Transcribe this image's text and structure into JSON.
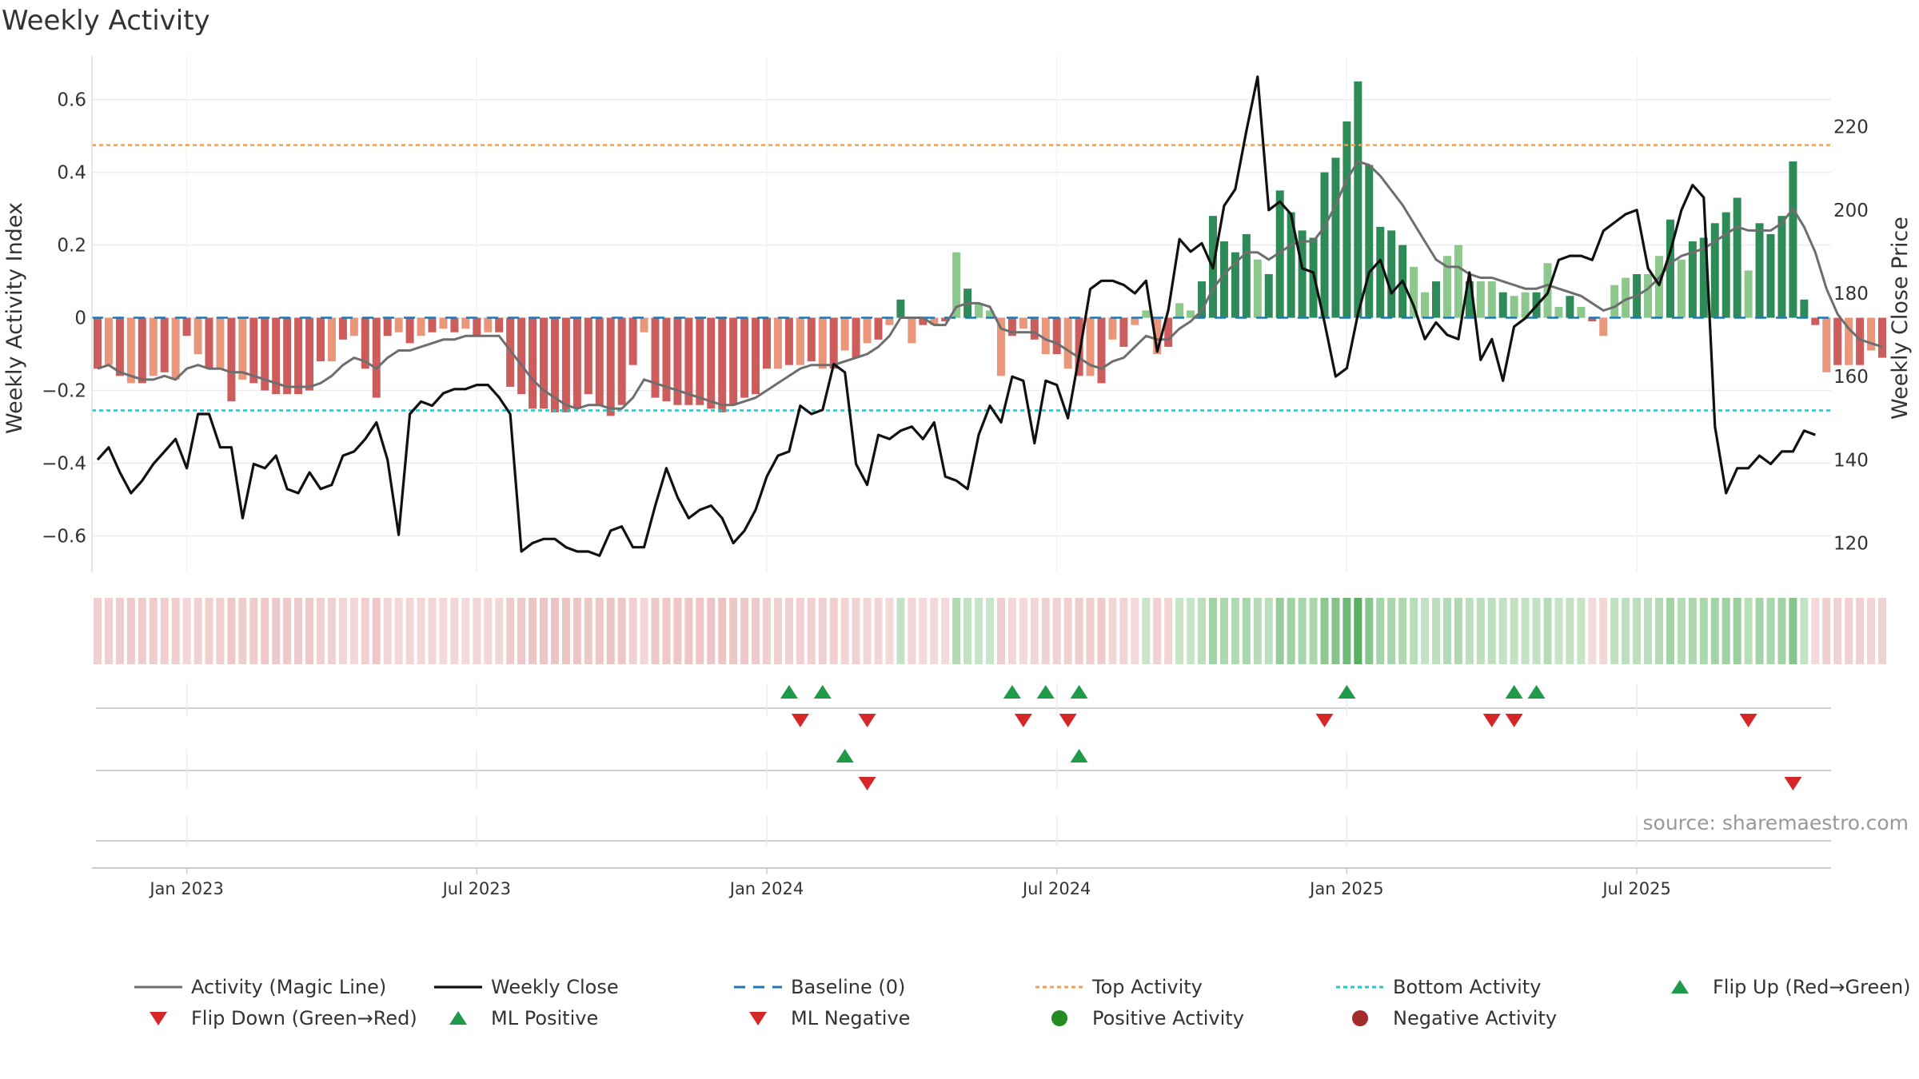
{
  "title": "Weekly Activity",
  "source": "source: sharemaestro.com",
  "colors": {
    "magic_line": "#6e6e6e",
    "close": "#111111",
    "baseline": "#1f77b4",
    "top": "#f0a050",
    "bottom": "#22c6cc",
    "pos_strong": "#2e8b57",
    "pos_light": "#8cc88c",
    "neg_strong": "#cd5c5c",
    "neg_light": "#e9967a",
    "flip_up": "#1e9a48",
    "flip_down": "#d62728",
    "pos_dot": "#228b22",
    "neg_dot": "#a52a2a"
  },
  "legend": [
    {
      "label": "Activity (Magic Line)",
      "icon": "line-gray"
    },
    {
      "label": "Weekly Close",
      "icon": "line-black"
    },
    {
      "label": "Baseline (0)",
      "icon": "dash-blue"
    },
    {
      "label": "Top Activity",
      "icon": "dot-orange-line"
    },
    {
      "label": "Bottom Activity",
      "icon": "dot-cyan-line"
    },
    {
      "label": "Flip Up (Red→Green)",
      "icon": "triangle-up-green"
    },
    {
      "label": "Flip Down (Green→Red)",
      "icon": "triangle-down-red"
    },
    {
      "label": "ML Positive",
      "icon": "triangle-up-green"
    },
    {
      "label": "ML Negative",
      "icon": "triangle-down-red"
    },
    {
      "label": "Positive Activity",
      "icon": "circle-green"
    },
    {
      "label": "Negative Activity",
      "icon": "circle-darkred"
    }
  ],
  "chart_data": {
    "type": "bar+line",
    "title": "Weekly Activity",
    "xlabel": "",
    "ylabel_left": "Weekly Activity Index",
    "ylabel_right": "Weekly Close Price",
    "ylim_left": [
      -0.7,
      0.72
    ],
    "ylim_right": [
      113,
      237
    ],
    "yticks_left": [
      {
        "v": 0.6,
        "label": "0.6"
      },
      {
        "v": 0.4,
        "label": "0.4"
      },
      {
        "v": 0.2,
        "label": "0.2"
      },
      {
        "v": 0,
        "label": "0"
      },
      {
        "v": -0.2,
        "label": "−0.2"
      },
      {
        "v": -0.4,
        "label": "−0.4"
      },
      {
        "v": -0.6,
        "label": "−0.6"
      }
    ],
    "yticks_right": [
      220,
      200,
      180,
      160,
      140,
      120
    ],
    "xticks": [
      {
        "week": 8,
        "label": "Jan 2023"
      },
      {
        "week": 34,
        "label": "Jul 2023"
      },
      {
        "week": 60,
        "label": "Jan 2024"
      },
      {
        "week": 86,
        "label": "Jul 2024"
      },
      {
        "week": 112,
        "label": "Jan 2025"
      },
      {
        "week": 138,
        "label": "Jul 2025"
      }
    ],
    "weeks": 157,
    "top_activity": 0.475,
    "bottom_activity": -0.255,
    "baseline": 0,
    "activity": [
      -0.14,
      -0.13,
      -0.16,
      -0.18,
      -0.18,
      -0.16,
      -0.15,
      -0.17,
      -0.05,
      -0.1,
      -0.14,
      -0.14,
      -0.23,
      -0.17,
      -0.18,
      -0.2,
      -0.21,
      -0.21,
      -0.21,
      -0.2,
      -0.12,
      -0.12,
      -0.06,
      -0.05,
      -0.14,
      -0.22,
      -0.05,
      -0.04,
      -0.07,
      -0.05,
      -0.04,
      -0.03,
      -0.04,
      -0.03,
      -0.05,
      -0.04,
      -0.04,
      -0.19,
      -0.21,
      -0.25,
      -0.25,
      -0.26,
      -0.26,
      -0.25,
      -0.21,
      -0.24,
      -0.27,
      -0.24,
      -0.13,
      -0.04,
      -0.22,
      -0.23,
      -0.24,
      -0.24,
      -0.24,
      -0.25,
      -0.26,
      -0.24,
      -0.22,
      -0.21,
      -0.14,
      -0.14,
      -0.13,
      -0.13,
      -0.12,
      -0.14,
      -0.14,
      -0.09,
      -0.11,
      -0.07,
      -0.06,
      -0.02,
      0.05,
      -0.07,
      -0.02,
      -0.02,
      -0.01,
      0.18,
      0.08,
      0.04,
      0.02,
      -0.16,
      -0.05,
      -0.03,
      -0.06,
      -0.1,
      -0.1,
      -0.14,
      -0.16,
      -0.16,
      -0.18,
      -0.06,
      -0.08,
      -0.02,
      0.02,
      -0.1,
      -0.08,
      0.04,
      0.02,
      0.1,
      0.28,
      0.21,
      0.18,
      0.23,
      0.16,
      0.12,
      0.35,
      0.29,
      0.24,
      0.22,
      0.4,
      0.44,
      0.54,
      0.65,
      0.42,
      0.25,
      0.24,
      0.2,
      0.14,
      0.07,
      0.1,
      0.17,
      0.2,
      0.1,
      0.1,
      0.1,
      0.07,
      0.06,
      0.07,
      0.07,
      0.15,
      0.03,
      0.06,
      0.03,
      -0.01,
      -0.05,
      0.09,
      0.11,
      0.12,
      0.12,
      0.17,
      0.27,
      0.16,
      0.21,
      0.22,
      0.26,
      0.29,
      0.33,
      0.13,
      0.26,
      0.23,
      0.28,
      0.43,
      0.05,
      -0.02,
      -0.15,
      -0.13,
      -0.13,
      -0.13,
      -0.09,
      -0.11
    ],
    "magic_line": [
      -0.14,
      -0.13,
      -0.15,
      -0.16,
      -0.17,
      -0.17,
      -0.16,
      -0.17,
      -0.14,
      -0.13,
      -0.14,
      -0.14,
      -0.15,
      -0.15,
      -0.16,
      -0.17,
      -0.18,
      -0.19,
      -0.19,
      -0.19,
      -0.18,
      -0.16,
      -0.13,
      -0.11,
      -0.12,
      -0.14,
      -0.11,
      -0.09,
      -0.09,
      -0.08,
      -0.07,
      -0.06,
      -0.06,
      -0.05,
      -0.05,
      -0.05,
      -0.05,
      -0.09,
      -0.13,
      -0.17,
      -0.2,
      -0.22,
      -0.24,
      -0.25,
      -0.24,
      -0.24,
      -0.25,
      -0.25,
      -0.22,
      -0.17,
      -0.18,
      -0.19,
      -0.2,
      -0.21,
      -0.22,
      -0.23,
      -0.24,
      -0.24,
      -0.23,
      -0.22,
      -0.2,
      -0.18,
      -0.16,
      -0.14,
      -0.13,
      -0.13,
      -0.13,
      -0.12,
      -0.11,
      -0.1,
      -0.08,
      -0.05,
      0.0,
      0.0,
      0.0,
      -0.02,
      -0.02,
      0.03,
      0.04,
      0.04,
      0.03,
      -0.03,
      -0.04,
      -0.04,
      -0.04,
      -0.06,
      -0.07,
      -0.09,
      -0.11,
      -0.13,
      -0.14,
      -0.12,
      -0.11,
      -0.08,
      -0.05,
      -0.06,
      -0.06,
      -0.03,
      -0.01,
      0.02,
      0.08,
      0.12,
      0.15,
      0.18,
      0.18,
      0.16,
      0.18,
      0.2,
      0.21,
      0.21,
      0.25,
      0.31,
      0.38,
      0.43,
      0.42,
      0.39,
      0.35,
      0.31,
      0.26,
      0.21,
      0.16,
      0.14,
      0.14,
      0.12,
      0.11,
      0.11,
      0.1,
      0.09,
      0.08,
      0.08,
      0.09,
      0.08,
      0.07,
      0.06,
      0.04,
      0.02,
      0.03,
      0.05,
      0.06,
      0.08,
      0.11,
      0.15,
      0.17,
      0.18,
      0.19,
      0.21,
      0.23,
      0.25,
      0.24,
      0.24,
      0.24,
      0.26,
      0.3,
      0.25,
      0.18,
      0.08,
      0.01,
      -0.03,
      -0.06,
      -0.07,
      -0.08
    ],
    "close": [
      140,
      143,
      137,
      132,
      135,
      139,
      142,
      145,
      138,
      151,
      151,
      143,
      143,
      126,
      139,
      138,
      141,
      133,
      132,
      137,
      133,
      134,
      141,
      142,
      145,
      149,
      140,
      122,
      151,
      154,
      153,
      156,
      157,
      157,
      158,
      158,
      155,
      151,
      118,
      120,
      121,
      121,
      119,
      118,
      118,
      117,
      123,
      124,
      119,
      119,
      129,
      138,
      131,
      126,
      128,
      129,
      126,
      120,
      123,
      128,
      136,
      141,
      142,
      153,
      151,
      152,
      163,
      161,
      139,
      134,
      146,
      145,
      147,
      148,
      145,
      149,
      136,
      135,
      133,
      146,
      153,
      149,
      160,
      159,
      144,
      159,
      158,
      150,
      165,
      181,
      183,
      183,
      182,
      180,
      183,
      166,
      176,
      193,
      190,
      192,
      186,
      201,
      205,
      219,
      232,
      200,
      202,
      199,
      186,
      185,
      173,
      160,
      162,
      175,
      185,
      188,
      180,
      183,
      177,
      169,
      173,
      170,
      169,
      185,
      164,
      169,
      159,
      172,
      174,
      177,
      180,
      188,
      189,
      189,
      188,
      195,
      197,
      199,
      200,
      186,
      182,
      190,
      200,
      206,
      203,
      148,
      132,
      138,
      138,
      141,
      139,
      142,
      142,
      147,
      146
    ]
  },
  "flip_markers": {
    "row1_up": [
      62,
      65,
      82,
      85,
      88,
      112,
      127,
      129
    ],
    "row1_down": [
      63,
      69,
      83,
      87,
      110,
      125,
      127,
      148
    ],
    "row2_up": [
      67,
      88
    ],
    "row2_down": [
      69,
      152
    ]
  }
}
